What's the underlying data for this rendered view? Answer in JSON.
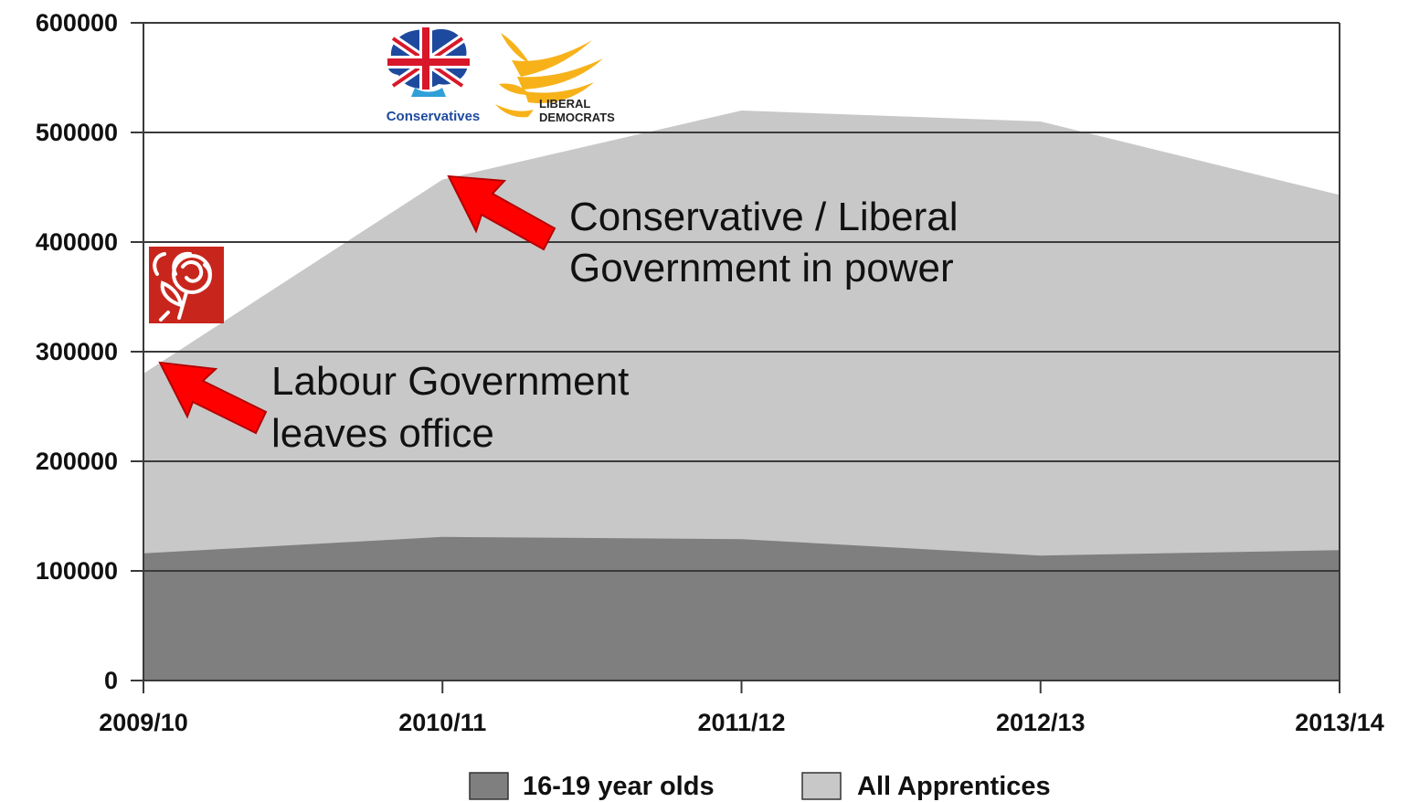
{
  "chart_data": {
    "type": "area",
    "categories": [
      "2009/10",
      "2010/11",
      "2011/12",
      "2012/13",
      "2013/14"
    ],
    "series": [
      {
        "name": "16-19 year olds",
        "values": [
          116000,
          131000,
          129000,
          114000,
          119000
        ],
        "color": "#7f7f7f"
      },
      {
        "name": "All Apprentices",
        "values": [
          280000,
          457000,
          520000,
          510000,
          443000
        ],
        "color": "#c8c8c8"
      }
    ],
    "ylim": [
      0,
      600000
    ],
    "yticks": [
      "0",
      "100000",
      "200000",
      "300000",
      "400000",
      "500000",
      "600000"
    ],
    "grid": true,
    "legend_position": "bottom-center",
    "annotations": [
      {
        "lines": [
          "Labour Government",
          "leaves office"
        ],
        "points_to": "2009/10",
        "arrow_color": "#ff0000"
      },
      {
        "lines": [
          "Conservative / Liberal",
          "Government in power"
        ],
        "points_to": "2010/11",
        "arrow_color": "#ff0000"
      }
    ]
  },
  "logos": {
    "conservatives": {
      "text": "Conservatives"
    },
    "liberal_democrats": {
      "line1": "LIBERAL",
      "line2": "DEMOCRATS"
    },
    "labour": {
      "icon": "rose-icon"
    }
  }
}
